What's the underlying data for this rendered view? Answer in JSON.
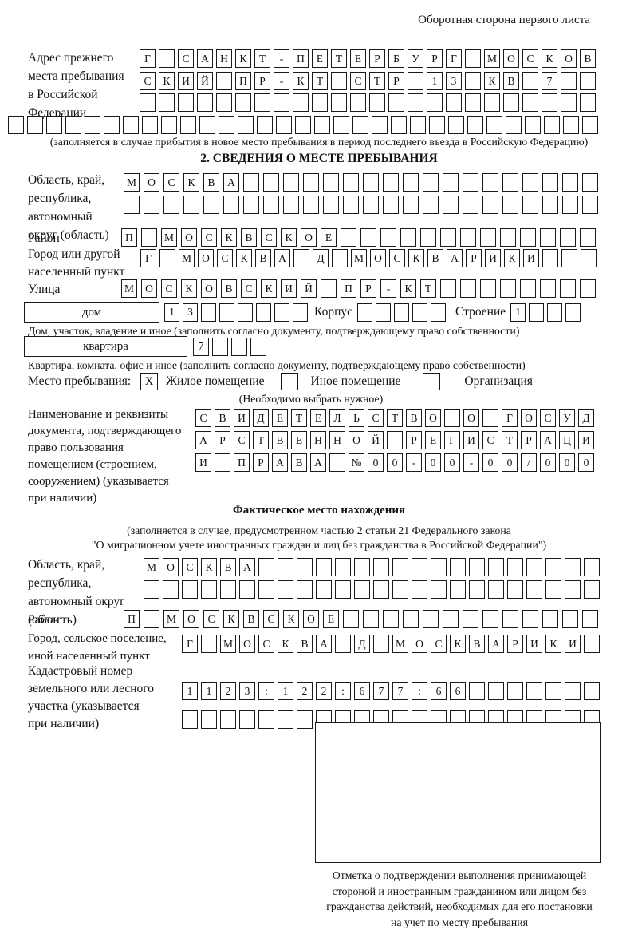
{
  "page": {
    "header_note": "Оборотная сторона первого листа"
  },
  "section1": {
    "prev_address": {
      "label": "Адрес прежнего\nместа пребывания\nв Российской\nФедерации",
      "row1": {
        "text": "Г САНКТ-ПЕТЕРБУРГ МОСКОВ",
        "count": 24
      },
      "row2": {
        "text": "СКИЙ ПР-КТ СТР 13 КВ 7",
        "count": 24
      },
      "row3": {
        "text": "",
        "count": 24
      },
      "row4": {
        "text": "",
        "count": 31
      },
      "note": "(заполняется в случае прибытия в новое место пребывания в период последнего въезда в Российскую Федерацию)"
    }
  },
  "section2": {
    "title": "2. СВЕДЕНИЯ О МЕСТЕ ПРЕБЫВАНИЯ",
    "oblast": {
      "label": "Область, край,\nреспублика,\nавтономный\nокруг (область)",
      "row1": {
        "text": "МОСКВА",
        "count": 24
      },
      "row2": {
        "text": "",
        "count": 24
      }
    },
    "raion": {
      "label": "Район",
      "row": {
        "text": "П МОСКВСКОЕ",
        "count": 24
      }
    },
    "gorod": {
      "label": "Город или другой\nнаселенный пункт",
      "row": {
        "text": "Г МОСКВА Д МОСКВАРИКИ",
        "count": 24
      }
    },
    "ulitsa": {
      "label": "Улица",
      "row": {
        "text": "МОСКОВСКИЙ ПР-КТ",
        "count": 24
      }
    },
    "dom": {
      "box_label": "дом",
      "row": {
        "text": "13",
        "count": 8
      },
      "korpus_label": "Корпус",
      "korpus_row": {
        "text": "",
        "count": 5
      },
      "stroenie_label": "Строение",
      "stroenie_row": {
        "text": "1",
        "count": 4
      },
      "note": "Дом, участок, владение и иное (заполнить согласно документу, подтверждающему право собственности)"
    },
    "kvartira": {
      "box_label": "квартира",
      "row": {
        "text": "7",
        "count": 4
      },
      "note": "Квартира, комната, офис и иное (заполнить согласно документу, подтверждающему право собственности)"
    },
    "stay": {
      "label": "Место пребывания:",
      "options": [
        {
          "label": "Жилое помещение",
          "mark": "X"
        },
        {
          "label": "Иное помещение",
          "mark": ""
        },
        {
          "label": "Организация",
          "mark": ""
        }
      ],
      "note": "(Необходимо выбрать нужное)"
    },
    "doc": {
      "label": "Наименование и реквизиты\nдокумента, подтверждающего\nправо пользования\nпомещением (строением,\nсооружением) (указывается\nпри наличии)",
      "row1": {
        "text": "СВИДЕТЕЛЬСТВО О ГОСУД",
        "count": 21
      },
      "row2": {
        "text": "АРСТВЕННОЙ РЕГИСТРАЦИ",
        "count": 21
      },
      "row3": {
        "text": "И ПРАВА №00-00-00/000",
        "count": 21
      }
    }
  },
  "fact": {
    "title": "Фактическое место нахождения",
    "note1": "(заполняется в случае, предусмотренном частью 2 статьи 21 Федерального закона",
    "note2": "\"О миграционном учете иностранных граждан и лиц без гражданства в Российской Федерации\")",
    "oblast": {
      "label": "Область, край,\nреспублика,\nавтономный округ\n(область)",
      "row1": {
        "text": "МОСКВА",
        "count": 24
      },
      "row2": {
        "text": "",
        "count": 24
      }
    },
    "raion": {
      "label": "Район",
      "row": {
        "text": "П МОСКВСКОЕ",
        "count": 24
      }
    },
    "gorod": {
      "label": "Город, сельское поселение,\nиной населенный пункт",
      "row": {
        "text": "Г МОСКВА Д МОСКВАРИКИ",
        "count": 22
      }
    },
    "cadastre": {
      "label": "Кадастровый номер\nземельного или лесного\nучастка (указывается\nпри наличии)",
      "row1": {
        "text": "1123:122:677:66",
        "count": 22
      },
      "row2": {
        "text": "",
        "count": 22
      }
    },
    "confirmation_note": "Отметка о подтверждении выполнения принимающей\nстороной и иностранным гражданином или лицом без\nгражданства действий, необходимых для его постановки\nна учет по месту пребывания"
  }
}
